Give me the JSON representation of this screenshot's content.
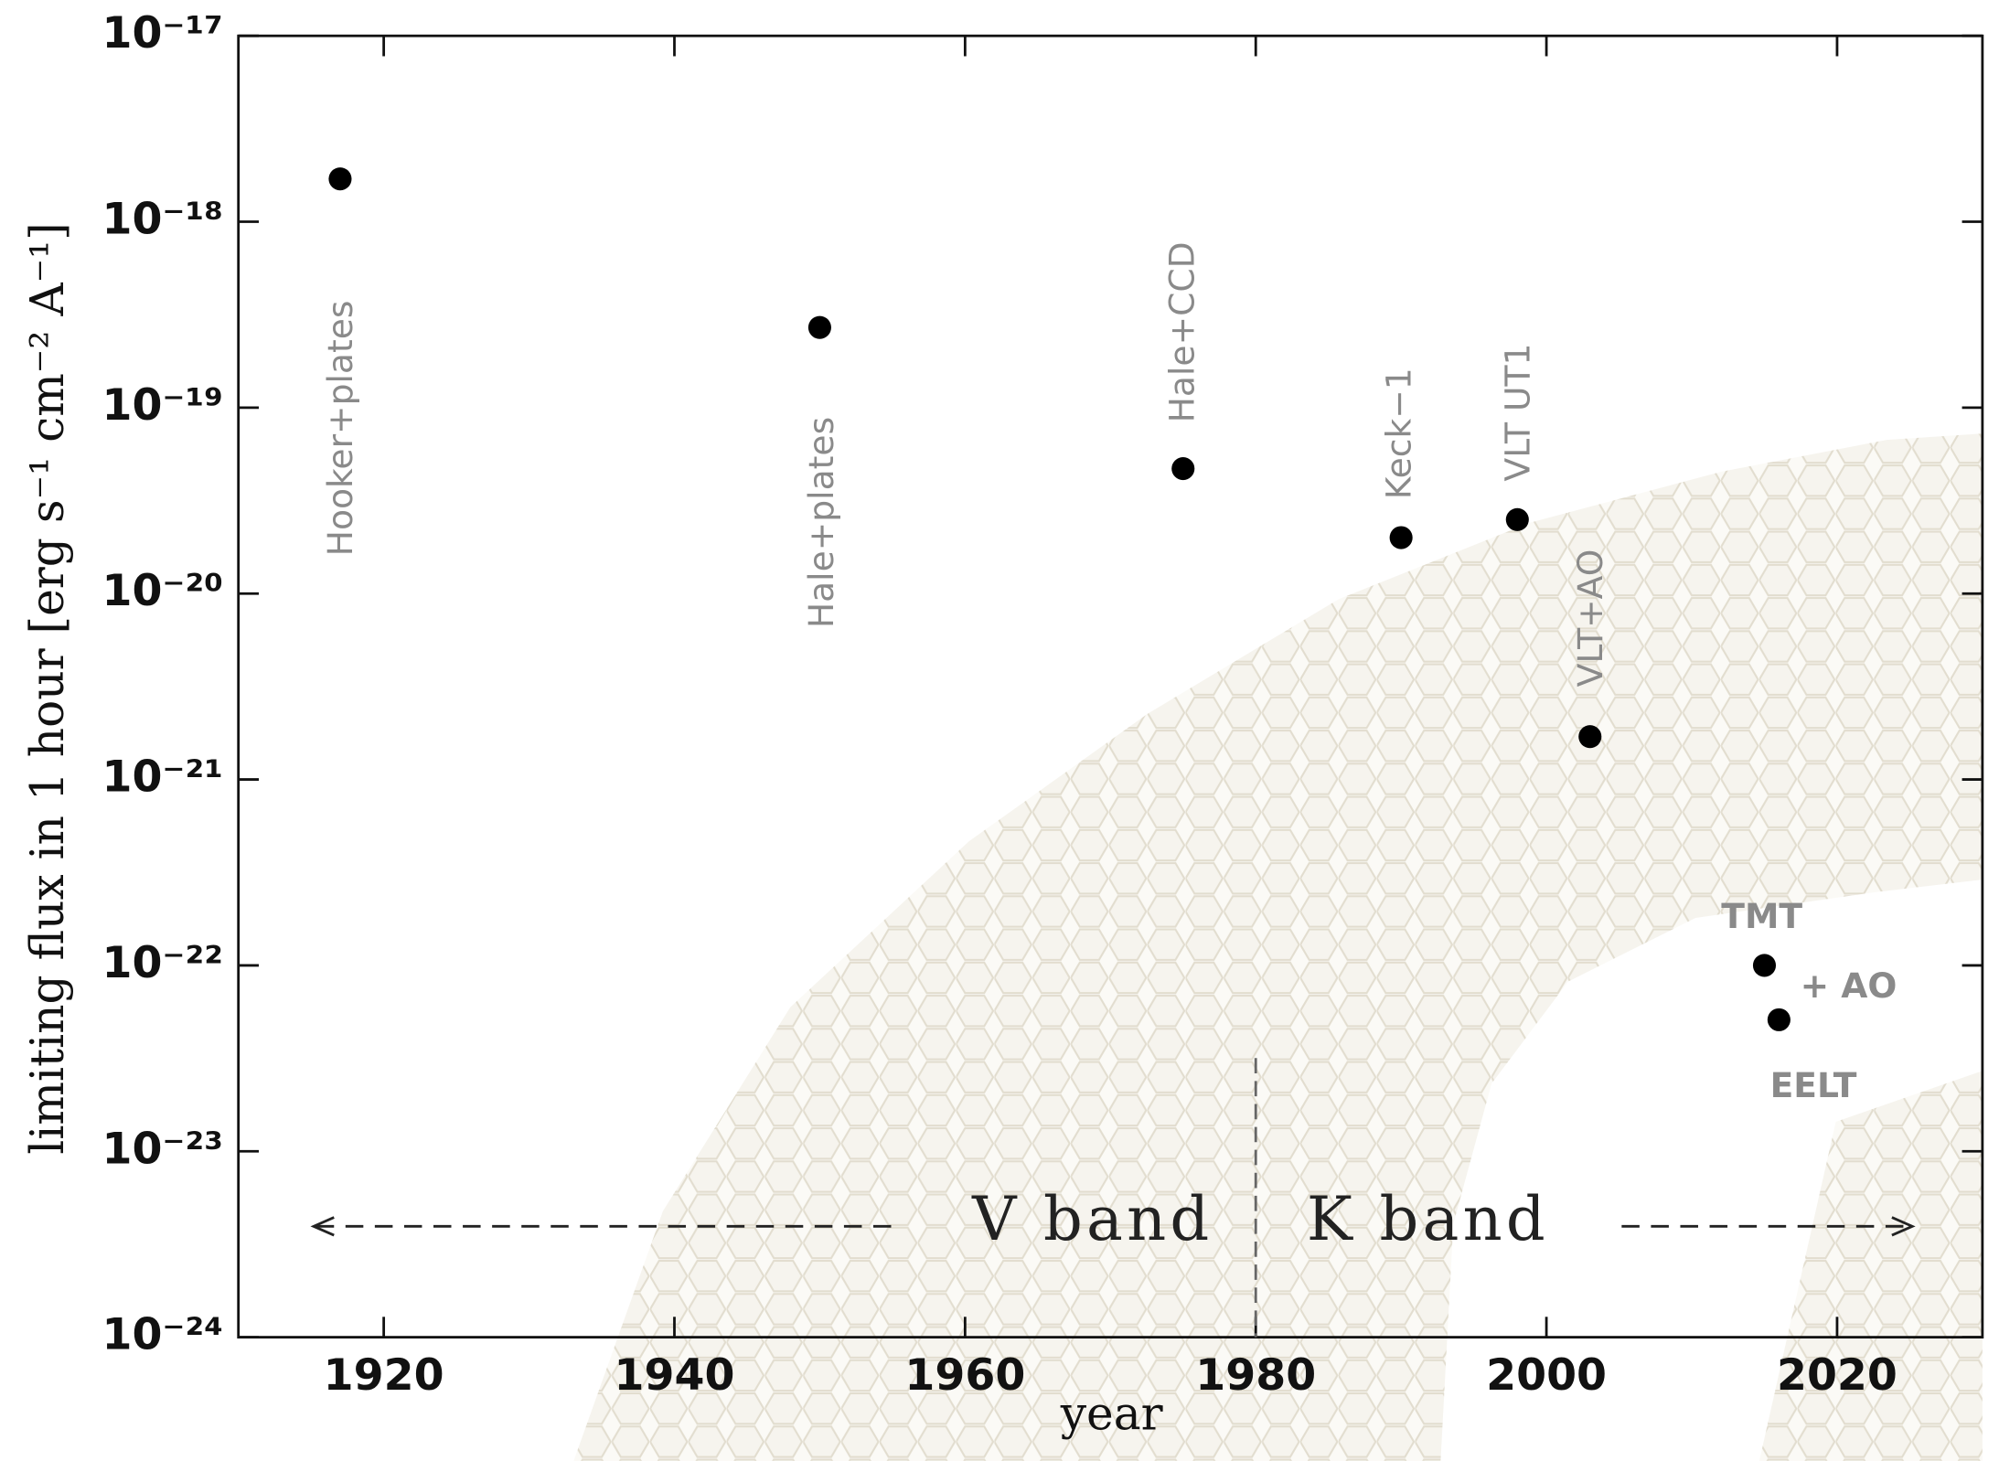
{
  "chart_data": {
    "type": "scatter",
    "x_label": "year",
    "y_label": "limiting flux in 1 hour [erg s⁻¹ cm⁻² A⁻¹]",
    "x": [
      1917,
      1950,
      1975,
      1990,
      1998,
      2003,
      2015,
      2016
    ],
    "values": [
      1.7e-18,
      2.7e-19,
      4.7e-20,
      2e-20,
      2.5e-20,
      1.7e-21,
      1e-22,
      5.1e-23
    ],
    "point_labels": [
      "Hooker+plates",
      "Hale+plates",
      "Hale+CCD",
      "Keck−1",
      "VLT UT1",
      "VLT+AO",
      "TMT",
      "EELT"
    ],
    "color": "#000000",
    "label_color": "#8a8a8a",
    "xlim": [
      1910,
      2030
    ],
    "xticks": [
      1920,
      1940,
      1960,
      1980,
      2000,
      2020
    ],
    "ylim": [
      1e-24,
      1e-17
    ],
    "y_scale": "log",
    "yticks": [
      {
        "value": 1e-24,
        "label": "10⁻²⁴"
      },
      {
        "value": 1e-23,
        "label": "10⁻²³"
      },
      {
        "value": 1e-22,
        "label": "10⁻²²"
      },
      {
        "value": 1e-21,
        "label": "10⁻²¹"
      },
      {
        "value": 1e-20,
        "label": "10⁻²⁰"
      },
      {
        "value": 1e-19,
        "label": "10⁻¹⁹"
      },
      {
        "value": 1e-18,
        "label": "10⁻¹⁸"
      },
      {
        "value": 1e-17,
        "label": "10⁻¹⁷"
      }
    ],
    "divider_x": 1980,
    "annotations": [
      "+ AO",
      "V band",
      "K band"
    ]
  }
}
